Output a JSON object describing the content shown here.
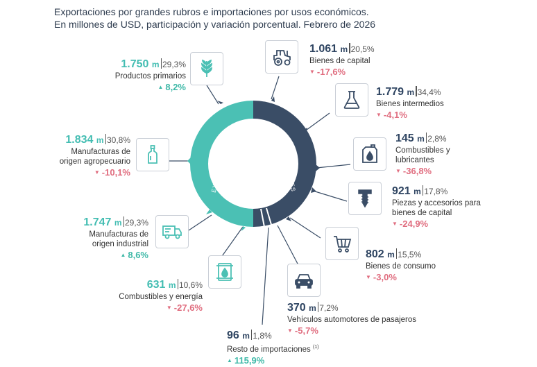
{
  "title": {
    "line1": "Exportaciones por grandes rubros e importaciones por usos económicos.",
    "line2": "En millones de USD, participación y variación porcentual. Febrero de 2026"
  },
  "donut": {
    "export_label": "EXPORTACIONES",
    "import_label": "IMPORTACIONES",
    "export_color": "#4bc0b4",
    "import_color": "#3a4d66"
  },
  "exports": [
    {
      "value": "1.750",
      "unit": "m",
      "share": "29,3%",
      "label": "Productos primarios",
      "change": "8,2%",
      "dir": "up",
      "icon": "wheat-icon"
    },
    {
      "value": "1.834",
      "unit": "m",
      "share": "30,8%",
      "label1": "Manufacturas de",
      "label2": "origen agropecuario",
      "change": "-10,1%",
      "dir": "down",
      "icon": "bottle-icon"
    },
    {
      "value": "1.747",
      "unit": "m",
      "share": "29,3%",
      "label1": "Manufacturas de",
      "label2": "origen industrial",
      "change": "8,6%",
      "dir": "up",
      "icon": "truck-icon"
    },
    {
      "value": "631",
      "unit": "m",
      "share": "10,6%",
      "label": "Combustibles y energía",
      "change": "-27,6%",
      "dir": "down",
      "icon": "oil-barrel-icon"
    }
  ],
  "imports": [
    {
      "value": "1.061",
      "unit": "m",
      "share": "20,5%",
      "label": "Bienes de capital",
      "change": "-17,6%",
      "dir": "down",
      "icon": "tractor-icon"
    },
    {
      "value": "1.779",
      "unit": "m",
      "share": "34,4%",
      "label": "Bienes intermedios",
      "change": "-4,1%",
      "dir": "down",
      "icon": "flask-icon"
    },
    {
      "value": "145",
      "unit": "m",
      "share": "2,8%",
      "label1": "Combustibles y",
      "label2": "lubricantes",
      "change": "-36,8%",
      "dir": "down",
      "icon": "oil-can-icon"
    },
    {
      "value": "921",
      "unit": "m",
      "share": "17,8%",
      "label1": "Piezas y accesorios para",
      "label2": "bienes de capital",
      "change": "-24,9%",
      "dir": "down",
      "icon": "screw-icon"
    },
    {
      "value": "802",
      "unit": "m",
      "share": "15,5%",
      "label": "Bienes de consumo",
      "change": "-3,0%",
      "dir": "down",
      "icon": "cart-icon"
    },
    {
      "value": "370",
      "unit": "m",
      "share": "7,2%",
      "label": "Vehículos automotores de pasajeros",
      "change": "-5,7%",
      "dir": "down",
      "icon": "car-icon"
    },
    {
      "value": "96",
      "unit": "m",
      "share": "1,8%",
      "label": "Resto de importaciones",
      "note": "(1)",
      "change": "115,9%",
      "dir": "up"
    }
  ],
  "triangles": {
    "up": "▲",
    "down": "▼"
  }
}
